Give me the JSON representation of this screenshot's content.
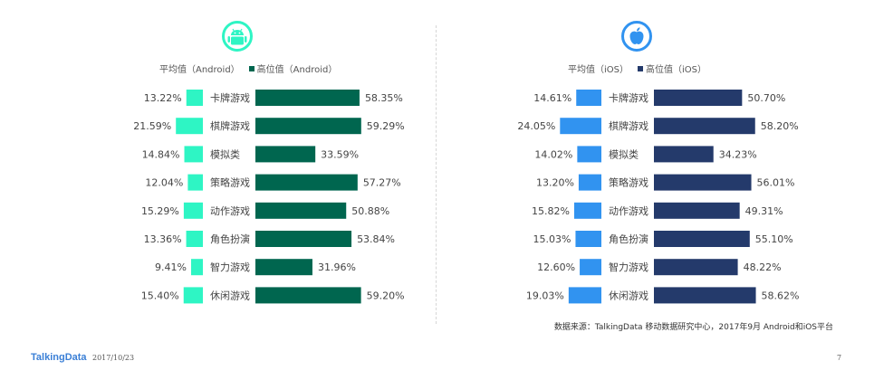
{
  "colors": {
    "android_low": "#2ef5c4",
    "android_high": "#00664f",
    "ios_low": "#3193f0",
    "ios_high": "#243a6b",
    "text": "#444444"
  },
  "android": {
    "icon": "android-logo-icon",
    "legend_low": "平均值（Android）",
    "legend_high": "高位值（Android）"
  },
  "ios": {
    "icon": "apple-logo-icon",
    "legend_low": "平均值（iOS）",
    "legend_high": "高位值（iOS）"
  },
  "source_note": "数据来源：TalkingData 移动数据研究中心，2017年9月 Android和iOS平台",
  "footer": {
    "brand": "TalkingData",
    "date": "2017/10/23",
    "page": "7"
  },
  "chart_data": [
    {
      "type": "bar",
      "platform": "Android",
      "categories": [
        "卡牌游戏",
        "棋牌游戏",
        "模拟类",
        "策略游戏",
        "动作游戏",
        "角色扮演",
        "智力游戏",
        "休闲游戏"
      ],
      "series": [
        {
          "name": "平均值（Android）",
          "values": [
            13.22,
            21.59,
            14.84,
            12.04,
            15.29,
            13.36,
            9.41,
            15.4
          ],
          "labels": [
            "13.22%",
            "21.59%",
            "14.84%",
            "12.04%",
            "15.29%",
            "13.36%",
            "9.41%",
            "15.40%"
          ]
        },
        {
          "name": "高位值（Android）",
          "values": [
            58.35,
            59.29,
            33.59,
            57.27,
            50.88,
            53.84,
            31.96,
            59.2
          ],
          "labels": [
            "58.35%",
            "59.29%",
            "33.59%",
            "57.27%",
            "50.88%",
            "53.84%",
            "31.96%",
            "59.20%"
          ]
        }
      ]
    },
    {
      "type": "bar",
      "platform": "iOS",
      "categories": [
        "卡牌游戏",
        "棋牌游戏",
        "模拟类",
        "策略游戏",
        "动作游戏",
        "角色扮演",
        "智力游戏",
        "休闲游戏"
      ],
      "series": [
        {
          "name": "平均值（iOS）",
          "values": [
            14.61,
            24.05,
            14.02,
            13.2,
            15.82,
            15.03,
            12.6,
            19.03
          ],
          "labels": [
            "14.61%",
            "24.05%",
            "14.02%",
            "13.20%",
            "15.82%",
            "15.03%",
            "12.60%",
            "19.03%"
          ]
        },
        {
          "name": "高位值（iOS）",
          "values": [
            50.7,
            58.2,
            34.23,
            56.01,
            49.31,
            55.1,
            48.22,
            58.62
          ],
          "labels": [
            "50.70%",
            "58.20%",
            "34.23%",
            "56.01%",
            "49.31%",
            "55.10%",
            "48.22%",
            "58.62%"
          ]
        }
      ]
    }
  ]
}
